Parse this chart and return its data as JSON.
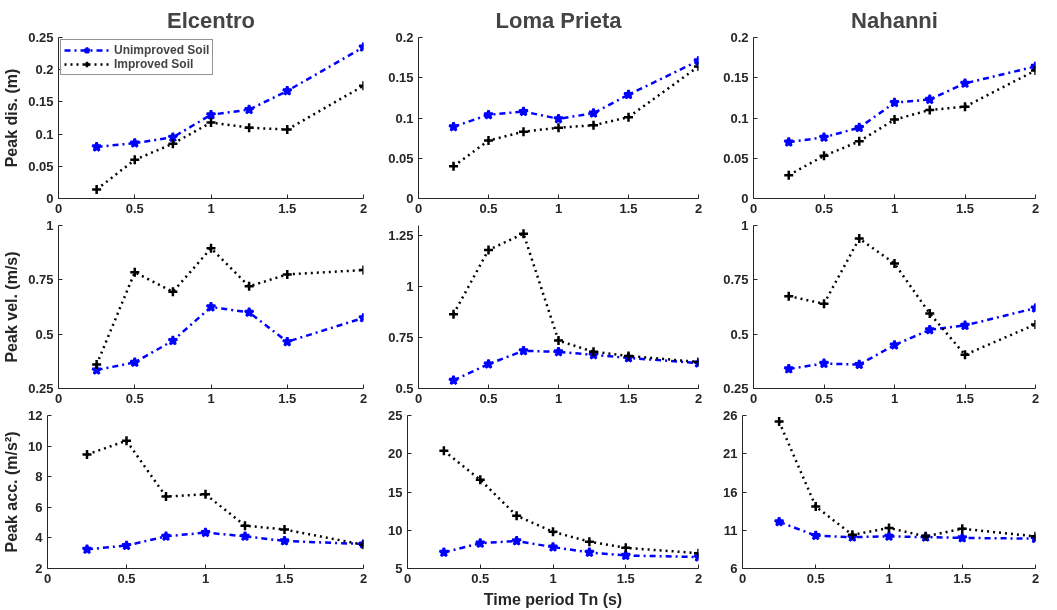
{
  "chart_data": [
    {
      "type": "line",
      "title": "Elcentro",
      "ylabel": "Peak dis. (m)",
      "x": [
        0.25,
        0.5,
        0.75,
        1,
        1.25,
        1.5,
        2
      ],
      "xlim": [
        0,
        2
      ],
      "xticks": [
        0,
        0.5,
        1,
        1.5,
        2
      ],
      "ylim": [
        0,
        0.25
      ],
      "yticks": [
        0,
        0.05,
        0.1,
        0.15,
        0.2,
        0.25
      ],
      "grid": false,
      "legend": "top left",
      "series": [
        {
          "name": "Unimproved Soil",
          "color": "#0000ff",
          "marker": "star",
          "line_style": "dashed",
          "values": [
            0.08,
            0.086,
            0.095,
            0.13,
            0.138,
            0.167,
            0.235
          ]
        },
        {
          "name": "Improved Soil",
          "color": "#000000",
          "marker": "cross",
          "line_style": "dotted",
          "values": [
            0.014,
            0.06,
            0.085,
            0.118,
            0.11,
            0.107,
            0.175
          ]
        }
      ]
    },
    {
      "type": "line",
      "title": "Loma Prieta",
      "x": [
        0.25,
        0.5,
        0.75,
        1,
        1.25,
        1.5,
        2
      ],
      "xlim": [
        0,
        2
      ],
      "xticks": [
        0,
        0.5,
        1,
        1.5,
        2
      ],
      "ylim": [
        0,
        0.2
      ],
      "yticks": [
        0,
        0.05,
        0.1,
        0.15,
        0.2
      ],
      "grid": false,
      "series": [
        {
          "color": "#0000ff",
          "marker": "star",
          "line_style": "dashed",
          "values": [
            0.089,
            0.104,
            0.108,
            0.099,
            0.106,
            0.129,
            0.171
          ]
        },
        {
          "color": "#000000",
          "marker": "cross",
          "line_style": "dotted",
          "values": [
            0.04,
            0.072,
            0.083,
            0.088,
            0.091,
            0.101,
            0.164
          ]
        }
      ]
    },
    {
      "type": "line",
      "title": "Nahanni",
      "x": [
        0.25,
        0.5,
        0.75,
        1,
        1.25,
        1.5,
        2
      ],
      "xlim": [
        0,
        2
      ],
      "xticks": [
        0,
        0.5,
        1,
        1.5,
        2
      ],
      "ylim": [
        0,
        0.2
      ],
      "yticks": [
        0,
        0.05,
        0.1,
        0.15,
        0.2
      ],
      "grid": false,
      "series": [
        {
          "color": "#0000ff",
          "marker": "star",
          "line_style": "dashed",
          "values": [
            0.07,
            0.076,
            0.088,
            0.119,
            0.123,
            0.143,
            0.164
          ]
        },
        {
          "color": "#000000",
          "marker": "cross",
          "line_style": "dotted",
          "values": [
            0.029,
            0.053,
            0.071,
            0.098,
            0.11,
            0.114,
            0.159
          ]
        }
      ]
    },
    {
      "type": "line",
      "ylabel": "Peak vel. (m/s)",
      "x": [
        0.25,
        0.5,
        0.75,
        1,
        1.25,
        1.5,
        2
      ],
      "xlim": [
        0,
        2
      ],
      "xticks": [
        0,
        0.5,
        1,
        1.5,
        2
      ],
      "ylim": [
        0.25,
        1
      ],
      "yticks": [
        0.25,
        0.5,
        0.75,
        1
      ],
      "grid": false,
      "series": [
        {
          "color": "#0000ff",
          "marker": "star",
          "line_style": "dashed",
          "values": [
            0.335,
            0.37,
            0.47,
            0.625,
            0.6,
            0.465,
            0.575
          ]
        },
        {
          "color": "#000000",
          "marker": "cross",
          "line_style": "dotted",
          "values": [
            0.36,
            0.785,
            0.695,
            0.895,
            0.72,
            0.775,
            0.795
          ]
        }
      ]
    },
    {
      "type": "line",
      "x": [
        0.25,
        0.5,
        0.75,
        1,
        1.25,
        1.5,
        2
      ],
      "xlim": [
        0,
        2
      ],
      "xticks": [
        0,
        0.5,
        1,
        1.5,
        2
      ],
      "ylim": [
        0.5,
        1.3
      ],
      "yticks": [
        0.5,
        0.75,
        1,
        1.25
      ],
      "grid": false,
      "series": [
        {
          "color": "#0000ff",
          "marker": "star",
          "line_style": "dashed",
          "values": [
            0.54,
            0.62,
            0.685,
            0.68,
            0.665,
            0.65,
            0.625
          ]
        },
        {
          "color": "#000000",
          "marker": "cross",
          "line_style": "dotted",
          "values": [
            0.865,
            1.18,
            1.26,
            0.735,
            0.68,
            0.66,
            0.63
          ]
        }
      ]
    },
    {
      "type": "line",
      "x": [
        0.25,
        0.5,
        0.75,
        1,
        1.25,
        1.5,
        2
      ],
      "xlim": [
        0,
        2
      ],
      "xticks": [
        0,
        0.5,
        1,
        1.5,
        2
      ],
      "ylim": [
        0.25,
        1
      ],
      "yticks": [
        0.25,
        0.5,
        0.75,
        1
      ],
      "grid": false,
      "series": [
        {
          "color": "#0000ff",
          "marker": "star",
          "line_style": "dashed",
          "values": [
            0.34,
            0.365,
            0.36,
            0.45,
            0.52,
            0.54,
            0.62
          ]
        },
        {
          "color": "#000000",
          "marker": "cross",
          "line_style": "dotted",
          "values": [
            0.675,
            0.64,
            0.94,
            0.825,
            0.595,
            0.405,
            0.545
          ]
        }
      ]
    },
    {
      "type": "line",
      "ylabel": "Peak acc. (m/s²)",
      "x": [
        0.25,
        0.5,
        0.75,
        1,
        1.25,
        1.5,
        2
      ],
      "xlim": [
        0,
        2
      ],
      "xticks": [
        0,
        0.5,
        1,
        1.5,
        2
      ],
      "ylim": [
        2,
        12
      ],
      "yticks": [
        2,
        4,
        6,
        8,
        10,
        12
      ],
      "grid": false,
      "series": [
        {
          "color": "#0000ff",
          "marker": "star",
          "line_style": "dashed",
          "values": [
            3.25,
            3.5,
            4.1,
            4.35,
            4.1,
            3.8,
            3.6
          ]
        },
        {
          "color": "#000000",
          "marker": "cross",
          "line_style": "dotted",
          "values": [
            9.45,
            10.35,
            6.7,
            6.85,
            4.8,
            4.55,
            3.55
          ]
        }
      ]
    },
    {
      "type": "line",
      "xlabel": "Time period Tn (s)",
      "x": [
        0.25,
        0.5,
        0.75,
        1,
        1.25,
        1.5,
        2
      ],
      "xlim": [
        0,
        2
      ],
      "xticks": [
        0,
        0.5,
        1,
        1.5,
        2
      ],
      "ylim": [
        5,
        25
      ],
      "yticks": [
        5,
        10,
        15,
        20,
        25
      ],
      "grid": false,
      "series": [
        {
          "color": "#0000ff",
          "marker": "star",
          "line_style": "dashed",
          "values": [
            7.1,
            8.3,
            8.6,
            7.8,
            7.1,
            6.7,
            6.5
          ]
        },
        {
          "color": "#000000",
          "marker": "cross",
          "line_style": "dotted",
          "values": [
            20.4,
            16.6,
            11.9,
            9.8,
            8.5,
            7.7,
            7.0
          ]
        }
      ]
    },
    {
      "type": "line",
      "x": [
        0.25,
        0.5,
        0.75,
        1,
        1.25,
        1.5,
        2
      ],
      "xlim": [
        0,
        2
      ],
      "xticks": [
        0,
        0.5,
        1,
        1.5,
        2
      ],
      "ylim": [
        6,
        26
      ],
      "yticks": [
        6,
        11,
        16,
        21,
        26
      ],
      "grid": false,
      "series": [
        {
          "color": "#0000ff",
          "marker": "star",
          "line_style": "dashed",
          "values": [
            12.1,
            10.3,
            10.1,
            10.2,
            10.1,
            10.0,
            9.9
          ]
        },
        {
          "color": "#000000",
          "marker": "cross",
          "line_style": "dotted",
          "values": [
            25.2,
            14.1,
            10.4,
            11.3,
            10.2,
            11.2,
            10.2
          ]
        }
      ]
    }
  ]
}
